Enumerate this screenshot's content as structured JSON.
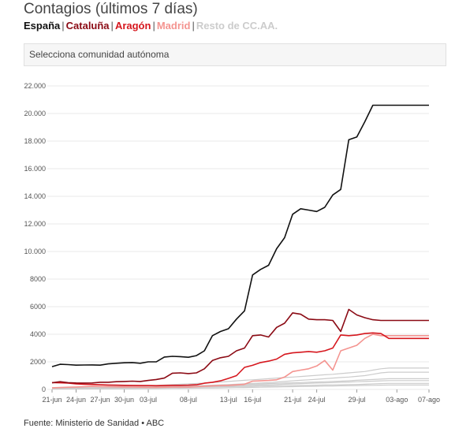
{
  "title": "Contagios (últimos 7 días)",
  "legend": [
    {
      "label": "España",
      "color": "#111111"
    },
    {
      "label": "Cataluña",
      "color": "#8b0a14"
    },
    {
      "label": "Aragón",
      "color": "#d6171e"
    },
    {
      "label": "Madrid",
      "color": "#f49490"
    },
    {
      "label": "Resto de CC.AA.",
      "color": "#cccccc"
    }
  ],
  "select_placeholder": "Selecciona comunidad autónoma",
  "source": "Fuente: Ministerio de Sanidad • ABC",
  "chart_data": {
    "type": "line",
    "x": [
      "21-jun",
      "22-jun",
      "23-jun",
      "24-jun",
      "25-jun",
      "26-jun",
      "27-jun",
      "28-jun",
      "29-jun",
      "30-jun",
      "01-jul",
      "02-jul",
      "03-jul",
      "04-jul",
      "05-jul",
      "06-jul",
      "07-jul",
      "08-jul",
      "09-jul",
      "10-jul",
      "11-jul",
      "12-jul",
      "13-jul",
      "14-jul",
      "15-jul",
      "16-jul",
      "17-jul",
      "18-jul",
      "19-jul",
      "20-jul",
      "21-jul",
      "22-jul",
      "23-jul",
      "24-jul",
      "25-jul",
      "26-jul",
      "27-jul",
      "28-jul",
      "29-jul",
      "30-jul",
      "31-jul",
      "01-ago",
      "02-ago",
      "03-ago",
      "04-ago",
      "05-ago",
      "06-ago",
      "07-ago"
    ],
    "x_tick_labels": [
      "21-jun",
      "24-jun",
      "27-jun",
      "30-jun",
      "03-jul",
      "08-jul",
      "13-jul",
      "16-jul",
      "21-jul",
      "24-jul",
      "29-jul",
      "03-ago",
      "07-ago"
    ],
    "x_tick_index": [
      0,
      3,
      6,
      9,
      12,
      17,
      22,
      25,
      30,
      33,
      38,
      43,
      47
    ],
    "ylim": [
      0,
      22000
    ],
    "y_ticks": [
      0,
      2000,
      4000,
      6000,
      8000,
      10000,
      12000,
      14000,
      16000,
      18000,
      20000,
      22000
    ],
    "y_tick_labels": [
      "0",
      "2000",
      "4000",
      "6000",
      "8000",
      "10.000",
      "12.000",
      "14.000",
      "16.000",
      "18.000",
      "20.000",
      "22.000"
    ],
    "series": [
      {
        "name": "España",
        "color": "#111111",
        "values": [
          1650,
          1820,
          1800,
          1760,
          1770,
          1780,
          1760,
          1850,
          1900,
          1930,
          1950,
          1900,
          2000,
          2000,
          2350,
          2400,
          2380,
          2330,
          2450,
          2800,
          3900,
          4200,
          4400,
          5100,
          5700,
          8300,
          8700,
          9000,
          10200,
          11000,
          12700,
          13100,
          13000,
          12900,
          13200,
          14100,
          14500,
          18100,
          18300,
          19400,
          20600,
          20600,
          20600,
          20600,
          20600,
          20600,
          20600,
          20600
        ]
      },
      {
        "name": "Cataluña",
        "color": "#8b0a14",
        "values": [
          480,
          560,
          490,
          470,
          460,
          470,
          520,
          520,
          560,
          580,
          600,
          580,
          650,
          720,
          820,
          1180,
          1200,
          1150,
          1200,
          1500,
          2100,
          2300,
          2400,
          2800,
          3000,
          3900,
          3950,
          3800,
          4500,
          4800,
          5550,
          5450,
          5100,
          5050,
          5050,
          5000,
          4200,
          5800,
          5400,
          5200,
          5050,
          5000,
          5000,
          5000,
          5000,
          5000,
          5000,
          5000
        ]
      },
      {
        "name": "Aragón",
        "color": "#d6171e",
        "values": [
          500,
          480,
          460,
          400,
          380,
          360,
          340,
          320,
          310,
          300,
          290,
          280,
          280,
          270,
          280,
          300,
          300,
          310,
          340,
          450,
          520,
          620,
          800,
          1000,
          1600,
          1750,
          1950,
          2050,
          2200,
          2550,
          2650,
          2700,
          2750,
          2700,
          2800,
          3000,
          3950,
          3900,
          3950,
          4050,
          4100,
          4050,
          3700,
          3700,
          3700,
          3700,
          3700,
          3700
        ]
      },
      {
        "name": "Madrid",
        "color": "#f49490",
        "values": [
          120,
          140,
          160,
          180,
          200,
          220,
          210,
          200,
          190,
          180,
          170,
          160,
          150,
          150,
          160,
          170,
          170,
          180,
          200,
          230,
          260,
          280,
          300,
          330,
          380,
          600,
          620,
          650,
          700,
          900,
          1300,
          1400,
          1500,
          1700,
          2100,
          1400,
          2800,
          3000,
          3200,
          3700,
          4000,
          3900,
          3900,
          3900,
          3900,
          3900,
          3900,
          3900
        ]
      },
      {
        "name": "",
        "color": "#cccccc",
        "values": [
          100,
          120,
          140,
          160,
          180,
          200,
          210,
          220,
          230,
          240,
          250,
          260,
          280,
          300,
          320,
          350,
          380,
          400,
          430,
          460,
          500,
          540,
          580,
          620,
          660,
          700,
          740,
          780,
          820,
          860,
          900,
          940,
          980,
          1020,
          1060,
          1100,
          1150,
          1200,
          1250,
          1300,
          1400,
          1500,
          1550,
          1550,
          1550,
          1550,
          1550,
          1550
        ]
      },
      {
        "name": "",
        "color": "#cccccc",
        "values": [
          80,
          90,
          100,
          110,
          120,
          130,
          140,
          150,
          160,
          170,
          180,
          190,
          200,
          210,
          220,
          230,
          240,
          250,
          270,
          290,
          310,
          330,
          350,
          380,
          410,
          440,
          470,
          500,
          540,
          580,
          620,
          660,
          700,
          740,
          780,
          820,
          860,
          900,
          950,
          1000,
          1100,
          1200,
          1250,
          1250,
          1250,
          1250,
          1250,
          1250
        ]
      },
      {
        "name": "",
        "color": "#cccccc",
        "values": [
          60,
          70,
          80,
          90,
          100,
          110,
          120,
          130,
          140,
          150,
          160,
          170,
          180,
          190,
          200,
          210,
          220,
          230,
          240,
          260,
          280,
          300,
          320,
          340,
          360,
          380,
          400,
          420,
          440,
          460,
          480,
          500,
          520,
          540,
          560,
          580,
          600,
          630,
          660,
          690,
          720,
          750,
          780,
          780,
          780,
          780,
          780,
          780
        ]
      },
      {
        "name": "",
        "color": "#cccccc",
        "values": [
          50,
          55,
          60,
          65,
          70,
          75,
          80,
          90,
          100,
          110,
          120,
          130,
          140,
          150,
          160,
          170,
          180,
          190,
          200,
          210,
          220,
          230,
          240,
          260,
          280,
          300,
          320,
          340,
          360,
          380,
          400,
          420,
          440,
          460,
          480,
          500,
          520,
          540,
          560,
          580,
          600,
          620,
          640,
          640,
          640,
          640,
          640,
          640
        ]
      },
      {
        "name": "",
        "color": "#cccccc",
        "values": [
          40,
          45,
          50,
          55,
          60,
          65,
          70,
          75,
          80,
          85,
          90,
          95,
          100,
          110,
          120,
          130,
          140,
          150,
          160,
          170,
          180,
          190,
          200,
          210,
          220,
          230,
          240,
          250,
          260,
          270,
          280,
          290,
          300,
          310,
          320,
          330,
          340,
          350,
          360,
          380,
          400,
          420,
          440,
          440,
          440,
          440,
          440,
          440
        ]
      },
      {
        "name": "",
        "color": "#cccccc",
        "values": [
          30,
          32,
          34,
          36,
          38,
          40,
          42,
          44,
          46,
          48,
          50,
          55,
          60,
          65,
          70,
          75,
          80,
          85,
          90,
          95,
          100,
          110,
          120,
          130,
          140,
          150,
          160,
          170,
          180,
          190,
          200,
          210,
          220,
          230,
          240,
          250,
          260,
          270,
          280,
          290,
          300,
          310,
          320,
          320,
          320,
          320,
          320,
          320
        ]
      }
    ]
  }
}
